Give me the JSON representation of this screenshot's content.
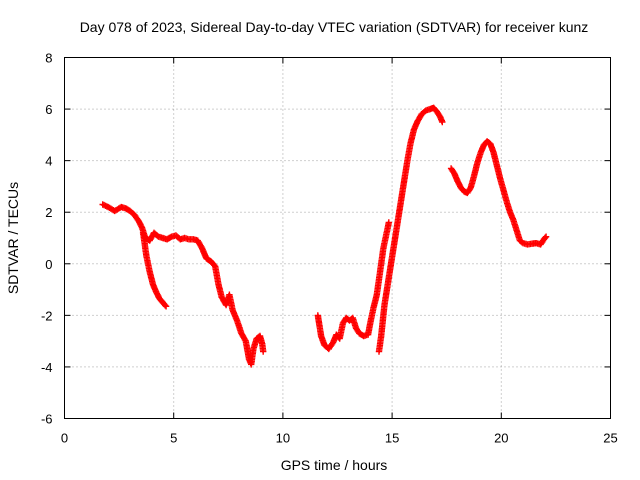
{
  "chart_data": {
    "type": "scatter",
    "title": "Day 078 of 2023, Sidereal Day-to-day VTEC variation (SDTVAR) for receiver kunz",
    "xlabel": "GPS time / hours",
    "ylabel": "SDTVAR / TECUs",
    "xlim": [
      0,
      25
    ],
    "ylim": [
      -6,
      8
    ],
    "xticks": [
      0,
      5,
      10,
      15,
      20,
      25
    ],
    "yticks": [
      -6,
      -4,
      -2,
      0,
      2,
      4,
      6,
      8
    ],
    "grid": true,
    "marker": "+",
    "series": [
      {
        "name": "SDTVAR",
        "color": "#ff0000",
        "segments": [
          [
            [
              1.75,
              2.3
            ],
            [
              2.0,
              2.2
            ],
            [
              2.3,
              2.05
            ],
            [
              2.6,
              2.2
            ],
            [
              2.8,
              2.15
            ],
            [
              3.0,
              2.05
            ],
            [
              3.2,
              1.9
            ],
            [
              3.4,
              1.65
            ],
            [
              3.55,
              1.4
            ],
            [
              3.7,
              1.0
            ],
            [
              3.9,
              0.9
            ],
            [
              4.1,
              1.2
            ],
            [
              4.3,
              1.05
            ],
            [
              4.5,
              1.0
            ],
            [
              4.7,
              0.95
            ],
            [
              4.9,
              1.05
            ],
            [
              5.1,
              1.1
            ],
            [
              5.3,
              0.95
            ],
            [
              5.5,
              1.0
            ],
            [
              5.7,
              0.95
            ],
            [
              5.9,
              0.95
            ],
            [
              6.1,
              0.9
            ],
            [
              6.3,
              0.6
            ],
            [
              6.5,
              0.2
            ],
            [
              6.7,
              0.1
            ],
            [
              6.9,
              -0.1
            ],
            [
              7.05,
              -0.8
            ],
            [
              7.2,
              -1.3
            ],
            [
              7.4,
              -1.6
            ],
            [
              7.55,
              -1.2
            ],
            [
              7.7,
              -1.8
            ],
            [
              7.9,
              -2.2
            ],
            [
              8.1,
              -2.7
            ],
            [
              8.3,
              -3.0
            ],
            [
              8.45,
              -3.7
            ],
            [
              8.55,
              -3.9
            ],
            [
              8.65,
              -3.3
            ],
            [
              8.8,
              -2.9
            ],
            [
              8.95,
              -2.8
            ],
            [
              9.05,
              -3.1
            ],
            [
              9.1,
              -3.4
            ]
          ],
          [
            [
              3.6,
              1.2
            ],
            [
              3.75,
              0.3
            ],
            [
              3.9,
              -0.3
            ],
            [
              4.05,
              -0.8
            ],
            [
              4.2,
              -1.1
            ],
            [
              4.35,
              -1.35
            ],
            [
              4.5,
              -1.5
            ],
            [
              4.65,
              -1.65
            ]
          ],
          [
            [
              11.6,
              -2.0
            ],
            [
              11.75,
              -2.8
            ],
            [
              11.9,
              -3.15
            ],
            [
              12.1,
              -3.3
            ],
            [
              12.3,
              -3.05
            ],
            [
              12.45,
              -2.75
            ],
            [
              12.6,
              -2.9
            ],
            [
              12.75,
              -2.3
            ],
            [
              12.9,
              -2.1
            ],
            [
              13.05,
              -2.2
            ],
            [
              13.2,
              -2.1
            ],
            [
              13.35,
              -2.5
            ],
            [
              13.5,
              -2.7
            ],
            [
              13.7,
              -2.8
            ],
            [
              13.9,
              -2.75
            ],
            [
              14.0,
              -2.3
            ],
            [
              14.15,
              -1.7
            ],
            [
              14.3,
              -1.2
            ],
            [
              14.45,
              -0.3
            ],
            [
              14.6,
              0.6
            ],
            [
              14.75,
              1.2
            ],
            [
              14.85,
              1.6
            ]
          ],
          [
            [
              14.4,
              -3.4
            ],
            [
              14.5,
              -2.8
            ],
            [
              14.65,
              -1.6
            ],
            [
              14.8,
              -0.8
            ],
            [
              14.95,
              0.0
            ],
            [
              15.1,
              0.8
            ],
            [
              15.25,
              1.6
            ],
            [
              15.4,
              2.4
            ],
            [
              15.55,
              3.2
            ],
            [
              15.7,
              4.0
            ],
            [
              15.85,
              4.7
            ],
            [
              16.0,
              5.2
            ],
            [
              16.15,
              5.5
            ],
            [
              16.35,
              5.8
            ],
            [
              16.55,
              5.95
            ],
            [
              16.75,
              6.0
            ],
            [
              16.9,
              6.05
            ],
            [
              17.05,
              5.9
            ],
            [
              17.2,
              5.7
            ],
            [
              17.3,
              5.5
            ]
          ],
          [
            [
              17.7,
              3.7
            ],
            [
              17.85,
              3.5
            ],
            [
              18.0,
              3.2
            ],
            [
              18.15,
              2.95
            ],
            [
              18.3,
              2.8
            ],
            [
              18.45,
              2.75
            ],
            [
              18.6,
              2.95
            ],
            [
              18.75,
              3.4
            ],
            [
              18.9,
              3.9
            ],
            [
              19.05,
              4.3
            ],
            [
              19.2,
              4.6
            ],
            [
              19.35,
              4.75
            ],
            [
              19.5,
              4.65
            ],
            [
              19.65,
              4.3
            ],
            [
              19.8,
              3.8
            ],
            [
              19.95,
              3.3
            ],
            [
              20.1,
              2.85
            ],
            [
              20.25,
              2.4
            ],
            [
              20.4,
              2.0
            ],
            [
              20.55,
              1.7
            ],
            [
              20.7,
              1.3
            ],
            [
              20.85,
              0.9
            ],
            [
              21.0,
              0.8
            ],
            [
              21.2,
              0.75
            ],
            [
              21.4,
              0.78
            ],
            [
              21.6,
              0.8
            ],
            [
              21.8,
              0.75
            ],
            [
              21.95,
              0.95
            ],
            [
              22.05,
              1.05
            ]
          ]
        ]
      }
    ]
  }
}
